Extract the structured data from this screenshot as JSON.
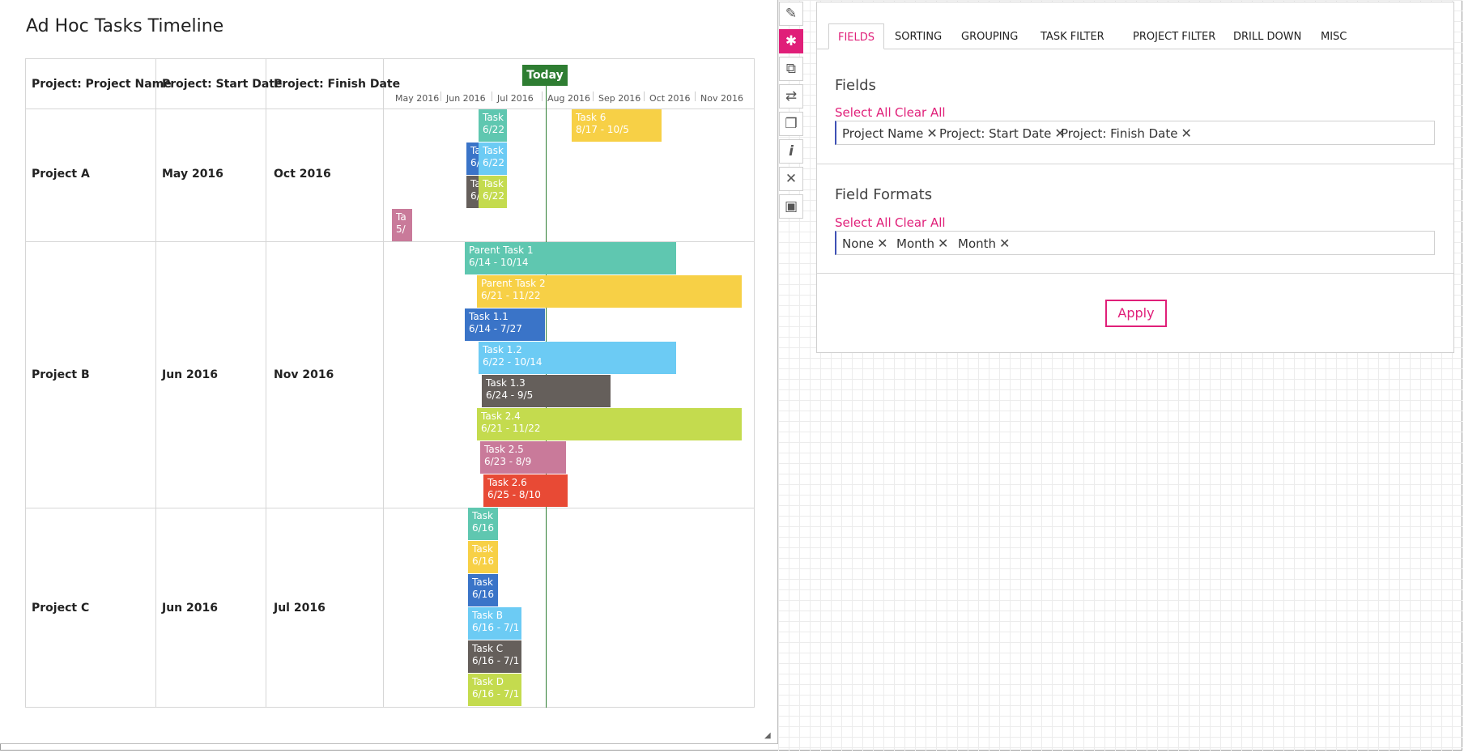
{
  "timeline": {
    "title": "Ad Hoc Tasks Timeline",
    "columns": [
      "Project: Project Name",
      "Project: Start Date",
      "Project: Finish Date"
    ],
    "months": [
      "May 2016",
      "Jun 2016",
      "Jul 2016",
      "Aug 2016",
      "Sep 2016",
      "Oct 2016",
      "Nov 2016"
    ],
    "today_label": "Today",
    "projects": [
      {
        "name": "Project A",
        "start": "May 2016",
        "finish": "Oct 2016"
      },
      {
        "name": "Project B",
        "start": "Jun 2016",
        "finish": "Nov 2016"
      },
      {
        "name": "Project C",
        "start": "Jun 2016",
        "finish": "Jul 2016"
      }
    ],
    "bars": [
      {
        "l1": "Task",
        "l2": "6/22",
        "color": "#5fc7b0"
      },
      {
        "l1": "Task 6",
        "l2": "8/17 - 10/5",
        "color": "#f7d046"
      },
      {
        "l1": "Ta",
        "l2": "6/",
        "color": "#3a74c8"
      },
      {
        "l1": "Task",
        "l2": "6/22",
        "color": "#6ccbf4"
      },
      {
        "l1": "Ta",
        "l2": "6/",
        "color": "#655f5b"
      },
      {
        "l1": "Task",
        "l2": "6/22",
        "color": "#c4db4e"
      },
      {
        "l1": "Ta",
        "l2": "5/",
        "color": "#c97a9a"
      },
      {
        "l1": "Parent Task 1",
        "l2": "6/14 - 10/14",
        "color": "#5fc7b0"
      },
      {
        "l1": "Parent Task 2",
        "l2": "6/21 - 11/22",
        "color": "#f7d046"
      },
      {
        "l1": "Task 1.1",
        "l2": "6/14 - 7/27",
        "color": "#3a74c8"
      },
      {
        "l1": "Task 1.2",
        "l2": "6/22 - 10/14",
        "color": "#6ccbf4"
      },
      {
        "l1": "Task 1.3",
        "l2": "6/24 - 9/5",
        "color": "#655f5b"
      },
      {
        "l1": "Task 2.4",
        "l2": "6/21 - 11/22",
        "color": "#c4db4e"
      },
      {
        "l1": "Task 2.5",
        "l2": "6/23 - 8/9",
        "color": "#c97a9a"
      },
      {
        "l1": "Task 2.6",
        "l2": "6/25 - 8/10",
        "color": "#e84a35"
      },
      {
        "l1": "Task",
        "l2": "6/16",
        "color": "#5fc7b0"
      },
      {
        "l1": "Task",
        "l2": "6/16",
        "color": "#f7d046"
      },
      {
        "l1": "Task",
        "l2": "6/16",
        "color": "#3a74c8"
      },
      {
        "l1": "Task B",
        "l2": "6/16 - 7/1",
        "color": "#6ccbf4"
      },
      {
        "l1": "Task C",
        "l2": "6/16 - 7/1",
        "color": "#655f5b"
      },
      {
        "l1": "Task D",
        "l2": "6/16 - 7/1",
        "color": "#c4db4e"
      }
    ]
  },
  "toolbar": [
    "paintbrush-icon",
    "gear-icon",
    "external-link-icon",
    "swap-icon",
    "copy-icon",
    "info-icon",
    "close-icon",
    "save-icon"
  ],
  "settings": {
    "tabs": [
      "FIELDS",
      "SORTING",
      "GROUPING",
      "TASK FILTER",
      "PROJECT FILTER",
      "DRILL DOWN",
      "MISC"
    ],
    "fields_title": "Fields",
    "formats_title": "Field Formats",
    "select_all": "Select All",
    "clear_all": "Clear All",
    "fields": [
      "Project Name",
      "Project: Start Date",
      "Project: Finish Date"
    ],
    "formats": [
      "None",
      "Month",
      "Month"
    ],
    "apply": "Apply",
    "accent": "#e01f79"
  }
}
